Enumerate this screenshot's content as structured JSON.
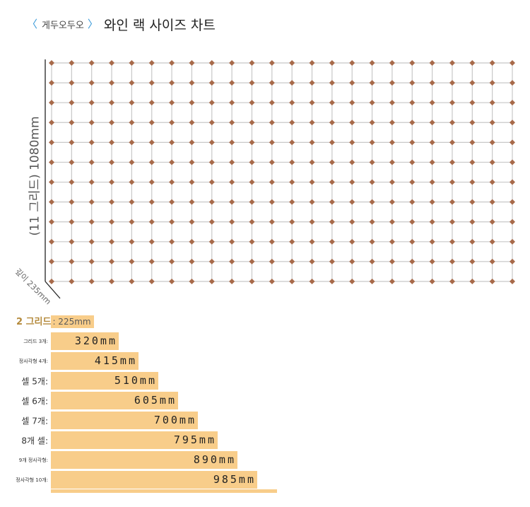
{
  "header": {
    "brand": "게두오두오",
    "left_chevron": "〈",
    "right_chevron": "〉",
    "title": "와인 랙 사이즈 차트"
  },
  "diagram": {
    "height_label": "(11 그리드) 1080mm",
    "depth_label": "깊이 235mm",
    "grid_columns": 24,
    "grid_rows": 12,
    "colors": {
      "grid_line": "#c8c8c8",
      "axis": "#222222",
      "node": "#a86a4a",
      "bar": "#f8cd8a"
    }
  },
  "size_chart": {
    "first_row": {
      "label": "2 그리드",
      "value": ": 225mm"
    },
    "rows": [
      {
        "label": "그리드 3개:",
        "value": "320mm"
      },
      {
        "label": "정사각형 4개:",
        "value": "415mm"
      },
      {
        "label": "셀 5개:",
        "value": "510mm"
      },
      {
        "label": "셀 6개:",
        "value": "605mm"
      },
      {
        "label": "셀 7개:",
        "value": "700mm"
      },
      {
        "label": "8개 셀:",
        "value": "795mm"
      },
      {
        "label": "9개 정사각형:",
        "value": "890mm"
      },
      {
        "label": "정사각형 10개:",
        "value": "985mm"
      }
    ]
  }
}
